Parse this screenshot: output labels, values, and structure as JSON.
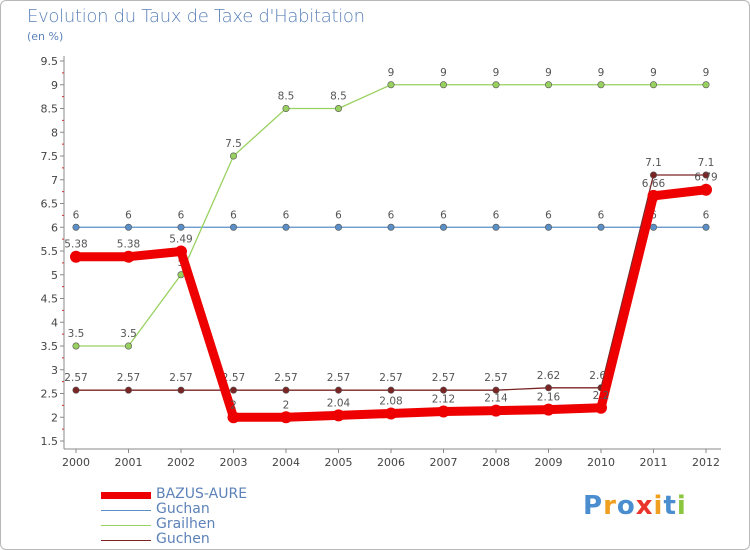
{
  "header": {
    "title": "Evolution du Taux de Taxe d'Habitation",
    "unit": "(en %)"
  },
  "chart_data": {
    "type": "line",
    "title": "Evolution du Taux de Taxe d'Habitation",
    "ylabel": "(en %)",
    "xlabel": "",
    "x": [
      "2000",
      "2001",
      "2002",
      "2003",
      "2004",
      "2005",
      "2006",
      "2007",
      "2008",
      "2009",
      "2010",
      "2011",
      "2012"
    ],
    "ylim": [
      1.5,
      9.5
    ],
    "yticks": [
      1.5,
      2,
      2.5,
      3,
      3.5,
      4,
      4.5,
      5,
      5.5,
      6,
      6.5,
      7,
      7.5,
      8,
      8.5,
      9,
      9.5
    ],
    "ytick_labels": [
      "1.5",
      "2",
      "2.5",
      "3",
      "3.5",
      "4",
      "4.5",
      "5",
      "5.5",
      "6",
      "6.5",
      "7",
      "7.5",
      "8",
      "8.5",
      "9",
      "9.5"
    ],
    "series": [
      {
        "name": "Guchan",
        "color": "#5a8fc8",
        "values": [
          6,
          6,
          6,
          6,
          6,
          6,
          6,
          6,
          6,
          6,
          6,
          6,
          6
        ],
        "labels": [
          "6",
          "6",
          "6",
          "6",
          "6",
          "6",
          "6",
          "6",
          "6",
          "6",
          "6",
          "6",
          "6"
        ]
      },
      {
        "name": "Grailhen",
        "color": "#99d160",
        "values": [
          3.5,
          3.5,
          5,
          7.5,
          8.5,
          8.5,
          9,
          9,
          9,
          9,
          9,
          9,
          9
        ],
        "labels": [
          "3.5",
          "3.5",
          "5",
          "7.5",
          "8.5",
          "8.5",
          "9",
          "9",
          "9",
          "9",
          "9",
          "9",
          "9"
        ]
      },
      {
        "name": "Guchen",
        "color": "#7b2424",
        "values": [
          2.57,
          2.57,
          2.57,
          2.57,
          2.57,
          2.57,
          2.57,
          2.57,
          2.57,
          2.62,
          2.62,
          7.1,
          7.1
        ],
        "labels": [
          "2.57",
          "2.57",
          "2.57",
          "2.57",
          "2.57",
          "2.57",
          "2.57",
          "2.57",
          "2.57",
          "2.62",
          "2.62",
          "7.1",
          "7.1"
        ]
      },
      {
        "name": "BAZUS-AURE",
        "color": "#ee0000",
        "values": [
          5.38,
          5.38,
          5.49,
          2,
          2,
          2.04,
          2.08,
          2.12,
          2.14,
          2.16,
          2.2,
          6.66,
          6.79
        ],
        "labels": [
          "5.38",
          "5.38",
          "5.49",
          "2",
          "2",
          "2.04",
          "2.08",
          "2.12",
          "2.14",
          "2.16",
          "2.2",
          "6.66",
          "6.79"
        ]
      }
    ],
    "legend": [
      {
        "name": "BAZUS-AURE",
        "color": "#ee0000"
      },
      {
        "name": "Guchan",
        "color": "#5a8fc8"
      },
      {
        "name": "Grailhen",
        "color": "#99d160"
      },
      {
        "name": "Guchen",
        "color": "#7b2424"
      }
    ],
    "legend_position": "bottom-left",
    "grid": false
  },
  "branding": {
    "logo_text": "Proxiti",
    "logo_letters": [
      {
        "ch": "P",
        "color": "#4a8ed0"
      },
      {
        "ch": "r",
        "color": "#f0a020"
      },
      {
        "ch": "o",
        "color": "#4a8ed0"
      },
      {
        "ch": "x",
        "color": "#e8342a"
      },
      {
        "ch": "i",
        "color": "#f0a020"
      },
      {
        "ch": "t",
        "color": "#4a8ed0"
      },
      {
        "ch": "i",
        "color": "#8cc63f"
      }
    ]
  }
}
